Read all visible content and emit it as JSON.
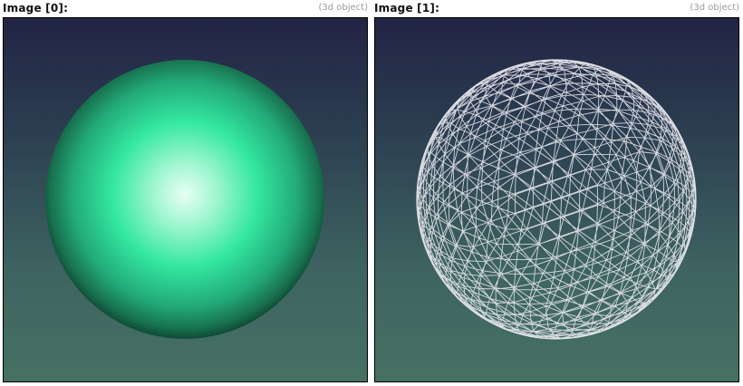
{
  "views": [
    {
      "title": "Image [0]:",
      "subtitle": "(3d object)",
      "render": "solid-sphere"
    },
    {
      "title": "Image [1]:",
      "subtitle": "(3d object)",
      "render": "wireframe-sphere"
    }
  ],
  "colors": {
    "sphere_highlight": "#e6fff4",
    "sphere_mid": "#34e8a0",
    "sphere_edge": "#0f4a36",
    "wireframe": "#e4e4ea"
  }
}
